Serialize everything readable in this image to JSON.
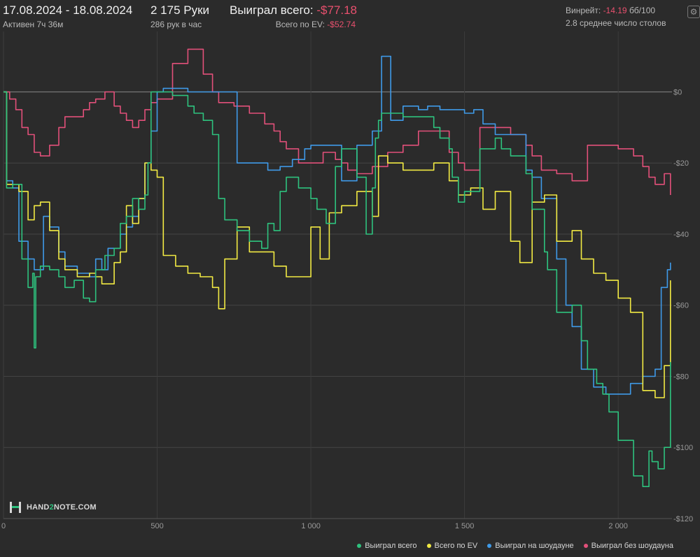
{
  "header": {
    "date_range": "17.08.2024 - 18.08.2024",
    "active_time": "Активен 7ч 36м",
    "hands": "2 175 Руки",
    "hands_per_hour": "286 рук в час",
    "won_total_label": "Выиграл всего:",
    "won_total_value": "-$77.18",
    "ev_total_label": "Всего по EV:",
    "ev_total_value": "-$52.74",
    "winrate_label": "Винрейт:",
    "winrate_value": "-14.19",
    "winrate_unit": "бб/100",
    "avg_tables": "2.8 среднее число столов"
  },
  "logo": {
    "text_pre": "HAND",
    "text_num": "2",
    "text_post": "NOTE.COM"
  },
  "icons": {
    "settings": "gear-icon"
  },
  "colors": {
    "background": "#2b2b2b",
    "won_total": "#2ec27e",
    "ev_total": "#f2ea43",
    "showdown": "#3f9ae8",
    "non_showdown": "#e2507a",
    "negative_text": "#e8506e"
  },
  "chart_data": {
    "type": "line",
    "x_label": "",
    "y_label": "",
    "xlim": [
      0,
      2175
    ],
    "ylim": [
      -120,
      17
    ],
    "x_ticks": [
      0,
      500,
      1000,
      1500,
      2000
    ],
    "x_tick_labels": [
      "0",
      "500",
      "1 000",
      "1 500",
      "2 000"
    ],
    "y_ticks": [
      0,
      -20,
      -40,
      -60,
      -80,
      -100,
      -120
    ],
    "y_tick_labels": [
      "$0",
      "-$20",
      "-$40",
      "-$60",
      "-$80",
      "-$100",
      "-$120"
    ],
    "grid": true,
    "legend_position": "bottom-right",
    "series": [
      {
        "name": "Выиграл всего",
        "color": "#2ec27e",
        "x": [
          0,
          10,
          30,
          60,
          80,
          95,
          100,
          105,
          120,
          150,
          180,
          200,
          230,
          260,
          280,
          300,
          330,
          360,
          380,
          400,
          420,
          440,
          460,
          470,
          480,
          500,
          550,
          600,
          620,
          650,
          680,
          700,
          720,
          760,
          800,
          840,
          860,
          880,
          900,
          920,
          960,
          1000,
          1020,
          1050,
          1080,
          1100,
          1150,
          1180,
          1200,
          1210,
          1220,
          1230,
          1250,
          1300,
          1350,
          1400,
          1420,
          1450,
          1460,
          1480,
          1500,
          1550,
          1600,
          1620,
          1650,
          1700,
          1720,
          1760,
          1770,
          1800,
          1850,
          1880,
          1900,
          1930,
          1950,
          1970,
          2000,
          2050,
          2080,
          2100,
          2110,
          2130,
          2150,
          2170
        ],
        "y": [
          0,
          -27,
          -26,
          -47,
          -55,
          -51,
          -72,
          -52,
          -49,
          -50,
          -52,
          -55,
          -53,
          -58,
          -59,
          -50,
          -46,
          -44,
          -37,
          -35,
          -30,
          -33,
          -29,
          -20,
          0,
          0,
          -1,
          -4,
          -6,
          -8,
          -12,
          -30,
          -36,
          -39,
          -42,
          -44,
          -37,
          -39,
          -28,
          -24,
          -27,
          -30,
          -33,
          -37,
          -21,
          -16,
          -24,
          -40,
          -27,
          -13,
          -8,
          -6,
          -6,
          -7,
          -7,
          -10,
          -13,
          -16,
          -24,
          -31,
          -28,
          -16,
          -13,
          -16,
          -18,
          -23,
          -33,
          -45,
          -50,
          -62,
          -60,
          -70,
          -78,
          -82,
          -85,
          -90,
          -98,
          -108,
          -111,
          -101,
          -104,
          -106,
          -100,
          -76
        ]
      },
      {
        "name": "Всего по EV",
        "color": "#f2ea43",
        "x": [
          0,
          10,
          50,
          80,
          100,
          120,
          150,
          180,
          200,
          240,
          280,
          300,
          320,
          360,
          380,
          400,
          420,
          440,
          460,
          480,
          500,
          520,
          560,
          600,
          640,
          680,
          700,
          720,
          760,
          800,
          840,
          880,
          920,
          960,
          1000,
          1030,
          1060,
          1100,
          1150,
          1200,
          1220,
          1250,
          1300,
          1350,
          1400,
          1450,
          1480,
          1520,
          1560,
          1600,
          1650,
          1680,
          1720,
          1760,
          1800,
          1850,
          1880,
          1920,
          1960,
          2000,
          2040,
          2080,
          2120,
          2150,
          2170
        ],
        "y": [
          0,
          -26,
          -28,
          -36,
          -32,
          -31,
          -39,
          -47,
          -50,
          -52,
          -51,
          -52,
          -54,
          -48,
          -45,
          -32,
          -37,
          -30,
          -20,
          -22,
          -24,
          -46,
          -49,
          -51,
          -52,
          -55,
          -61,
          -47,
          -38,
          -45,
          -45,
          -49,
          -52,
          -52,
          -38,
          -47,
          -34,
          -32,
          -28,
          -35,
          -18,
          -20,
          -22,
          -22,
          -20,
          -25,
          -29,
          -27,
          -33,
          -28,
          -42,
          -48,
          -31,
          -29,
          -42,
          -39,
          -47,
          -51,
          -53,
          -58,
          -62,
          -84,
          -86,
          -77,
          -53
        ]
      },
      {
        "name": "Выиграл на шоудауне",
        "color": "#3f9ae8",
        "x": [
          0,
          10,
          30,
          50,
          80,
          100,
          130,
          150,
          180,
          200,
          240,
          280,
          300,
          320,
          340,
          380,
          400,
          420,
          440,
          460,
          480,
          500,
          520,
          560,
          600,
          660,
          700,
          760,
          800,
          860,
          900,
          940,
          980,
          1000,
          1050,
          1100,
          1150,
          1200,
          1230,
          1260,
          1300,
          1350,
          1380,
          1420,
          1500,
          1530,
          1560,
          1600,
          1640,
          1700,
          1720,
          1750,
          1800,
          1830,
          1850,
          1880,
          1920,
          1960,
          2000,
          2040,
          2080,
          2120,
          2140,
          2160,
          2170
        ],
        "y": [
          0,
          -25,
          -27,
          -42,
          -47,
          -50,
          -35,
          -38,
          -45,
          -49,
          -51,
          -52,
          -47,
          -50,
          -44,
          -40,
          -38,
          -35,
          -30,
          -20,
          -11,
          0,
          1,
          1,
          0,
          0,
          0,
          -20,
          -20,
          -22,
          -21,
          -19,
          -16,
          -15,
          -15,
          -25,
          -15,
          -11,
          10,
          -8,
          -4,
          -5,
          -4,
          -5,
          -6,
          -5,
          -9,
          -12,
          -12,
          -22,
          -24,
          -30,
          -47,
          -60,
          -66,
          -78,
          -83,
          -85,
          -85,
          -82,
          -80,
          -78,
          -55,
          -50,
          -48
        ]
      },
      {
        "name": "Выиграл без шоудауна",
        "color": "#e2507a",
        "x": [
          0,
          20,
          40,
          60,
          80,
          100,
          120,
          150,
          180,
          200,
          230,
          260,
          280,
          300,
          330,
          360,
          380,
          400,
          420,
          440,
          460,
          480,
          500,
          550,
          600,
          650,
          680,
          700,
          720,
          750,
          800,
          850,
          880,
          900,
          920,
          960,
          1000,
          1040,
          1080,
          1100,
          1120,
          1150,
          1200,
          1250,
          1300,
          1350,
          1400,
          1450,
          1480,
          1500,
          1550,
          1600,
          1650,
          1700,
          1720,
          1750,
          1800,
          1850,
          1900,
          1950,
          2000,
          2050,
          2080,
          2100,
          2120,
          2150,
          2170
        ],
        "y": [
          0,
          -2,
          -5,
          -10,
          -12,
          -17,
          -18,
          -15,
          -10,
          -7,
          -7,
          -5,
          -3,
          -2,
          0,
          -4,
          -6,
          -8,
          -10,
          -8,
          -5,
          -3,
          -2,
          8,
          12,
          5,
          0,
          -3,
          -3,
          -4,
          -6,
          -9,
          -11,
          -14,
          -16,
          -20,
          -20,
          -17,
          -19,
          -20,
          -22,
          -23,
          -21,
          -17,
          -15,
          -11,
          -11,
          -17,
          -20,
          -22,
          -10,
          -10,
          -12,
          -15,
          -18,
          -22,
          -23,
          -25,
          -15,
          -15,
          -16,
          -18,
          -21,
          -24,
          -26,
          -23,
          -29
        ]
      }
    ]
  },
  "legend_items": [
    {
      "label": "Выиграл всего",
      "color": "#2ec27e"
    },
    {
      "label": "Всего по EV",
      "color": "#f2ea43"
    },
    {
      "label": "Выиграл на шоудауне",
      "color": "#3f9ae8"
    },
    {
      "label": "Выиграл без шоудауна",
      "color": "#e2507a"
    }
  ]
}
